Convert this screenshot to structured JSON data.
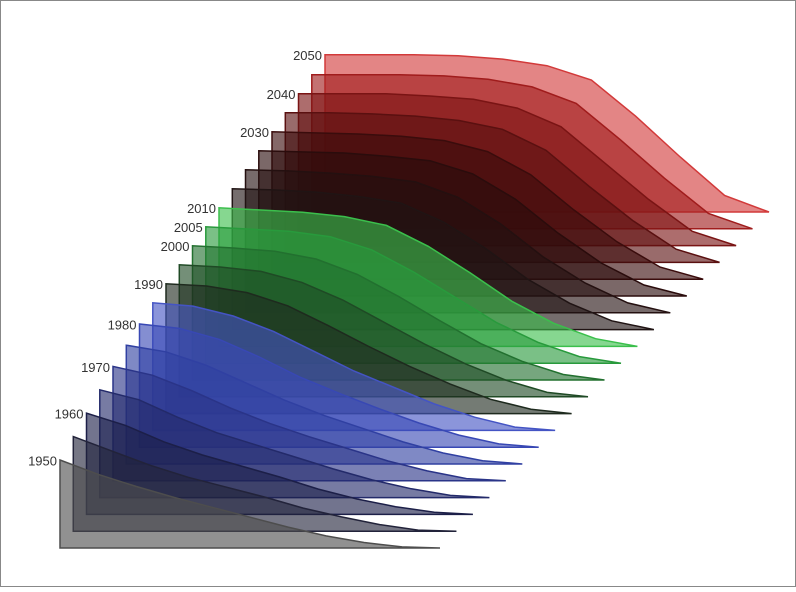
{
  "chart_data": {
    "type": "ridgeline",
    "x": [
      0,
      10,
      20,
      30,
      40,
      50,
      60,
      70,
      80,
      90,
      100
    ],
    "series": [
      {
        "name": "1950",
        "color": "#4d4d4d",
        "values": [
          80,
          67,
          56,
          46,
          37,
          28,
          19,
          11,
          5,
          1,
          0
        ]
      },
      {
        "name": null,
        "color": "#22233a",
        "values": [
          86,
          73,
          60,
          49,
          40,
          31,
          21,
          13,
          6,
          1,
          0
        ]
      },
      {
        "name": "1960",
        "color": "#1c1f48",
        "values": [
          92,
          81,
          66,
          54,
          44,
          34,
          23,
          14,
          7,
          2,
          0
        ]
      },
      {
        "name": null,
        "color": "#232a6a",
        "values": [
          98,
          89,
          73,
          59,
          48,
          37,
          26,
          16,
          8,
          2,
          0
        ]
      },
      {
        "name": "1970",
        "color": "#2a3488",
        "values": [
          104,
          96,
          82,
          66,
          52,
          40,
          29,
          18,
          9,
          2,
          0
        ]
      },
      {
        "name": null,
        "color": "#3040a2",
        "values": [
          108,
          102,
          90,
          74,
          58,
          44,
          32,
          20,
          10,
          3,
          0
        ]
      },
      {
        "name": "1980",
        "color": "#3848b4",
        "values": [
          112,
          108,
          98,
          82,
          64,
          49,
          35,
          22,
          11,
          3,
          0
        ]
      },
      {
        "name": null,
        "color": "#4454c4",
        "values": [
          116,
          113,
          104,
          90,
          72,
          54,
          39,
          24,
          12,
          3,
          0
        ]
      },
      {
        "name": "1990",
        "color": "#1e2a1e",
        "values": [
          118,
          116,
          110,
          98,
          80,
          61,
          43,
          27,
          13,
          4,
          0
        ]
      },
      {
        "name": null,
        "color": "#1f4a25",
        "values": [
          120,
          118,
          114,
          104,
          88,
          68,
          48,
          30,
          15,
          4,
          0
        ]
      },
      {
        "name": "2000",
        "color": "#22702f",
        "values": [
          122,
          120,
          117,
          110,
          96,
          76,
          54,
          33,
          17,
          5,
          0
        ]
      },
      {
        "name": "2005",
        "color": "#289a3c",
        "values": [
          124,
          122,
          120,
          115,
          103,
          83,
          60,
          37,
          19,
          6,
          0
        ]
      },
      {
        "name": "2010",
        "color": "#3bbf4c",
        "values": [
          126,
          124,
          122,
          118,
          110,
          91,
          67,
          41,
          21,
          7,
          0
        ]
      },
      {
        "name": null,
        "color": "#201414",
        "values": [
          128,
          127,
          125,
          121,
          115,
          98,
          74,
          46,
          24,
          8,
          0
        ]
      },
      {
        "name": null,
        "color": "#241010",
        "values": [
          130,
          129,
          127,
          124,
          119,
          105,
          81,
          51,
          27,
          9,
          0
        ]
      },
      {
        "name": null,
        "color": "#2a0c0c",
        "values": [
          132,
          131,
          130,
          127,
          123,
          111,
          88,
          57,
          30,
          10,
          0
        ]
      },
      {
        "name": "2030",
        "color": "#3a0c0c",
        "values": [
          134,
          133,
          132,
          130,
          126,
          116,
          95,
          63,
          34,
          11,
          0
        ]
      },
      {
        "name": null,
        "color": "#5a1010",
        "values": [
          136,
          136,
          135,
          133,
          129,
          121,
          102,
          69,
          38,
          12,
          0
        ]
      },
      {
        "name": "2040",
        "color": "#7a1414",
        "values": [
          138,
          138,
          138,
          136,
          133,
          125,
          108,
          75,
          42,
          13,
          0
        ]
      },
      {
        "name": null,
        "color": "#a01c1c",
        "values": [
          140,
          140,
          140,
          139,
          136,
          129,
          114,
          81,
          46,
          14,
          0
        ]
      },
      {
        "name": "2050",
        "color": "#d23a3a",
        "values": [
          143,
          143,
          143,
          142,
          139,
          133,
          120,
          87,
          50,
          15,
          0
        ]
      }
    ]
  }
}
